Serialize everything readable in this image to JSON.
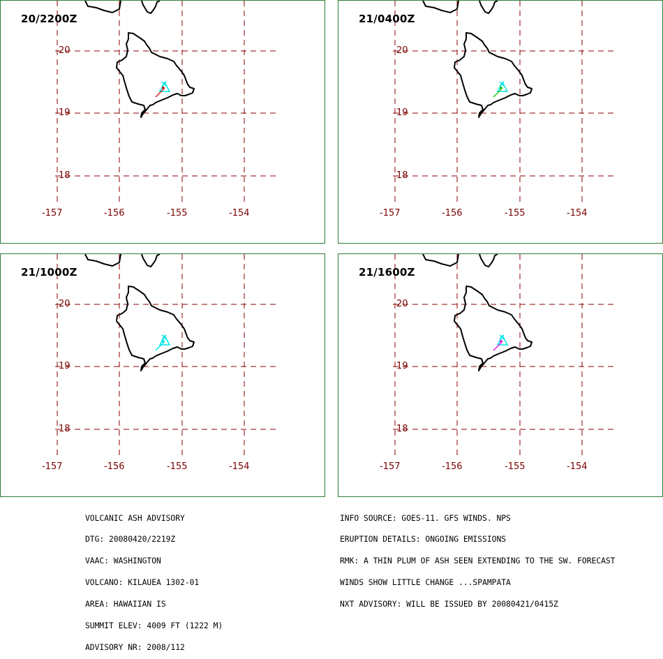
{
  "map_style": {
    "grid_color": "#8b0000",
    "coast_color": "#000000",
    "panel_border_color": "#2e7d32",
    "label_color": "#7a0000",
    "ash_color_cyan": "#00e5e5",
    "ash_color_green": "#22cc22",
    "ash_color_magenta": "#dd22dd",
    "ash_color_red": "#cc2222"
  },
  "latitudes": [
    "20",
    "19",
    "18"
  ],
  "longitudes": [
    "-157",
    "-156",
    "-155",
    "-154"
  ],
  "panels": [
    {
      "time": "20/2200Z",
      "plume_color": "#cc2222"
    },
    {
      "time": "21/0400Z",
      "plume_color": "#22cc22"
    },
    {
      "time": "21/1000Z",
      "plume_color": "#00e5e5"
    },
    {
      "time": "21/1600Z",
      "plume_color": "#dd22dd"
    }
  ],
  "advisory_left": [
    "VOLCANIC ASH ADVISORY",
    "DTG: 20080420/2219Z",
    "VAAC: WASHINGTON",
    "VOLCANO: KILAUEA 1302-01",
    "AREA: HAWAIIAN IS",
    "SUMMIT ELEV: 4009 FT (1222 M)",
    "ADVISORY NR: 2008/112"
  ],
  "advisory_right": [
    "INFO SOURCE: GOES-11. GFS WINDS. NPS",
    "ERUPTION DETAILS: ONGOING EMISSIONS",
    "RMK: A THIN PLUM OF ASH SEEN EXTENDING TO THE SW. FORECAST",
    "WINDS SHOW LITTLE CHANGE ...SPAMPATA",
    "NXT ADVISORY: WILL BE ISSUED BY 20080421/0415Z"
  ]
}
